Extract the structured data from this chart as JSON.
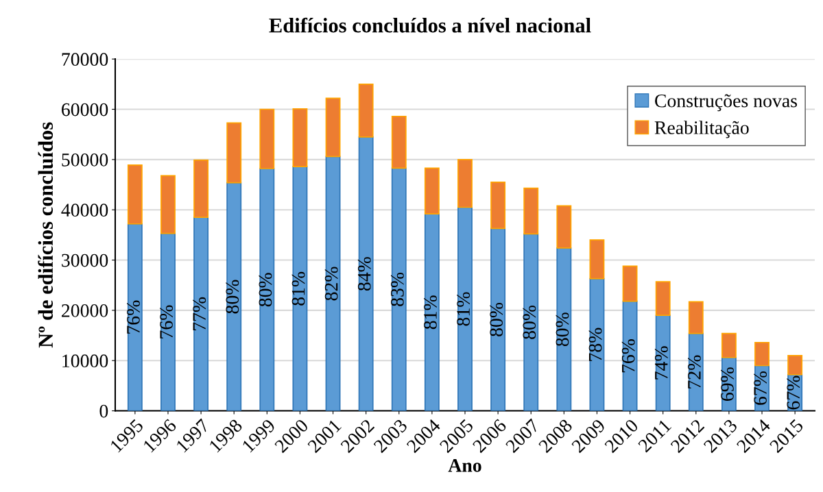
{
  "chart_data": {
    "type": "bar",
    "title": "Edifícios concluídos a nível nacional",
    "xlabel": "Ano",
    "ylabel": "Nº de edifícios concluídos",
    "categories": [
      "1995",
      "1996",
      "1997",
      "1998",
      "1999",
      "2000",
      "2001",
      "2002",
      "2003",
      "2004",
      "2005",
      "2006",
      "2007",
      "2008",
      "2009",
      "2010",
      "2011",
      "2012",
      "2013",
      "2014",
      "2015"
    ],
    "stacked": true,
    "series": [
      {
        "name": "Construções novas",
        "color": "#5b9bd5",
        "values": [
          37200,
          35300,
          38500,
          45400,
          48200,
          48600,
          50600,
          54500,
          48300,
          39200,
          40500,
          36300,
          35200,
          32400,
          26300,
          21800,
          19000,
          15400,
          10600,
          9000,
          7200
        ]
      },
      {
        "name": "Reabilitação",
        "color": "#ed7d31",
        "values": [
          11700,
          11500,
          11400,
          11900,
          11800,
          11500,
          11600,
          10500,
          10300,
          9100,
          9500,
          9200,
          9100,
          8400,
          7700,
          7000,
          6700,
          6300,
          4800,
          4600,
          3800
        ]
      }
    ],
    "annotations": [
      "76%",
      "76%",
      "77%",
      "80%",
      "80%",
      "81%",
      "82%",
      "84%",
      "83%",
      "81%",
      "81%",
      "80%",
      "80%",
      "80%",
      "78%",
      "76%",
      "74%",
      "72%",
      "69%",
      "67%",
      "67%"
    ],
    "ylim": [
      0,
      70000
    ],
    "yticks": [
      0,
      10000,
      20000,
      30000,
      40000,
      50000,
      60000,
      70000
    ],
    "grid": "y",
    "legend": "top right"
  }
}
